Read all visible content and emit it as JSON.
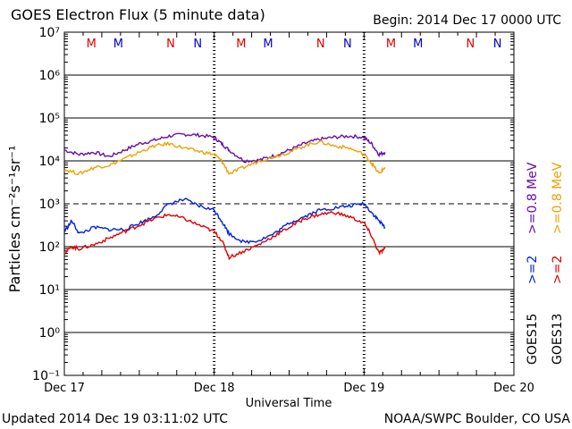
{
  "header": {
    "title": "GOES Electron Flux (5 minute data)",
    "begin": "Begin: 2014 Dec 17 0000 UTC"
  },
  "footer": {
    "updated": "Updated 2014 Dec 19 03:11:02 UTC",
    "credit": "NOAA/SWPC Boulder, CO USA"
  },
  "colors": {
    "goes15_08": "#6a0dad",
    "goes13_08": "#f0a000",
    "goes15_2": "#0022dd",
    "goes13_2": "#e00000",
    "red_marker": "#dd0000",
    "blue_marker": "#0000cc"
  },
  "chart_data": {
    "type": "line",
    "title": "GOES Electron Flux (5 minute data)",
    "xlabel": "Universal Time",
    "ylabel": "Particles cm⁻²s⁻¹sr⁻¹",
    "yscale": "log",
    "ylim_exp": [
      -1,
      7
    ],
    "y_tick_labels": [
      "10⁻¹",
      "10⁰",
      "10¹",
      "10²",
      "10³",
      "10⁴",
      "10⁵",
      "10⁶",
      "10⁷"
    ],
    "xlim_days": [
      0,
      3
    ],
    "x_tick_labels": [
      "Dec 17",
      "Dec 18",
      "Dec 19",
      "Dec 20"
    ],
    "threshold_exp": 3,
    "day_boundaries": [
      1,
      2
    ],
    "markers": [
      {
        "label": "M",
        "day": 0.18,
        "color": "red"
      },
      {
        "label": "M",
        "day": 0.36,
        "color": "blue"
      },
      {
        "label": "N",
        "day": 0.71,
        "color": "red"
      },
      {
        "label": "N",
        "day": 0.89,
        "color": "blue"
      },
      {
        "label": "M",
        "day": 1.18,
        "color": "red"
      },
      {
        "label": "M",
        "day": 1.36,
        "color": "blue"
      },
      {
        "label": "N",
        "day": 1.71,
        "color": "red"
      },
      {
        "label": "N",
        "day": 1.89,
        "color": "blue"
      },
      {
        "label": "M",
        "day": 2.18,
        "color": "red"
      },
      {
        "label": "M",
        "day": 2.36,
        "color": "blue"
      },
      {
        "label": "N",
        "day": 2.71,
        "color": "red"
      },
      {
        "label": "N",
        "day": 2.89,
        "color": "blue"
      }
    ],
    "legend": [
      {
        "sat": "GOES15",
        "series": [
          ">=2",
          ">=0.8 MeV"
        ],
        "colors": [
          "#0022dd",
          "#6a0dad"
        ]
      },
      {
        "sat": "GOES13",
        "series": [
          ">=2",
          ">=0.8 MeV"
        ],
        "colors": [
          "#e00000",
          "#f0a000"
        ]
      }
    ],
    "series": [
      {
        "name": "GOES15 >=0.8 MeV",
        "color": "#6a0dad",
        "x": [
          0.0,
          0.1,
          0.2,
          0.3,
          0.4,
          0.5,
          0.6,
          0.7,
          0.8,
          0.9,
          1.0,
          1.05,
          1.1,
          1.2,
          1.3,
          1.4,
          1.5,
          1.6,
          1.7,
          1.8,
          1.9,
          2.0,
          2.05,
          2.1,
          2.14
        ],
        "y": [
          4.25,
          4.15,
          4.2,
          4.1,
          4.25,
          4.4,
          4.48,
          4.58,
          4.62,
          4.6,
          4.55,
          4.4,
          4.25,
          4.0,
          4.02,
          4.12,
          4.25,
          4.4,
          4.5,
          4.55,
          4.58,
          4.55,
          4.4,
          4.15,
          4.2
        ]
      },
      {
        "name": "GOES13 >=0.8 MeV",
        "color": "#f0a000",
        "x": [
          0.0,
          0.1,
          0.2,
          0.3,
          0.4,
          0.5,
          0.6,
          0.7,
          0.8,
          0.9,
          1.0,
          1.05,
          1.1,
          1.2,
          1.3,
          1.4,
          1.5,
          1.6,
          1.7,
          1.8,
          1.9,
          2.0,
          2.05,
          2.1,
          2.14
        ],
        "y": [
          3.8,
          3.7,
          3.85,
          3.9,
          4.05,
          4.2,
          4.35,
          4.4,
          4.3,
          4.22,
          4.15,
          4.0,
          3.7,
          3.85,
          4.0,
          4.1,
          4.2,
          4.35,
          4.45,
          4.35,
          4.3,
          4.15,
          3.95,
          3.7,
          3.85
        ]
      },
      {
        "name": "GOES15 >=2 MeV",
        "color": "#0022dd",
        "x": [
          0.0,
          0.05,
          0.1,
          0.2,
          0.3,
          0.4,
          0.5,
          0.6,
          0.7,
          0.8,
          0.9,
          1.0,
          1.05,
          1.1,
          1.2,
          1.3,
          1.4,
          1.5,
          1.6,
          1.7,
          1.8,
          1.9,
          2.0,
          2.05,
          2.1,
          2.14
        ],
        "y": [
          2.35,
          2.6,
          2.3,
          2.45,
          2.4,
          2.4,
          2.55,
          2.7,
          3.0,
          3.1,
          2.95,
          2.85,
          2.6,
          2.3,
          2.1,
          2.15,
          2.3,
          2.55,
          2.7,
          2.85,
          2.9,
          2.95,
          3.0,
          2.8,
          2.6,
          2.45
        ]
      },
      {
        "name": "GOES13 >=2 MeV",
        "color": "#e00000",
        "x": [
          0.0,
          0.05,
          0.1,
          0.2,
          0.3,
          0.4,
          0.5,
          0.6,
          0.7,
          0.8,
          0.9,
          1.0,
          1.05,
          1.1,
          1.2,
          1.3,
          1.4,
          1.5,
          1.6,
          1.7,
          1.8,
          1.9,
          2.0,
          2.05,
          2.1,
          2.14
        ],
        "y": [
          1.85,
          2.0,
          1.95,
          2.05,
          2.2,
          2.35,
          2.5,
          2.65,
          2.75,
          2.65,
          2.5,
          2.35,
          2.15,
          1.75,
          1.9,
          2.05,
          2.25,
          2.45,
          2.65,
          2.75,
          2.8,
          2.7,
          2.55,
          2.25,
          1.85,
          1.95
        ]
      }
    ]
  }
}
